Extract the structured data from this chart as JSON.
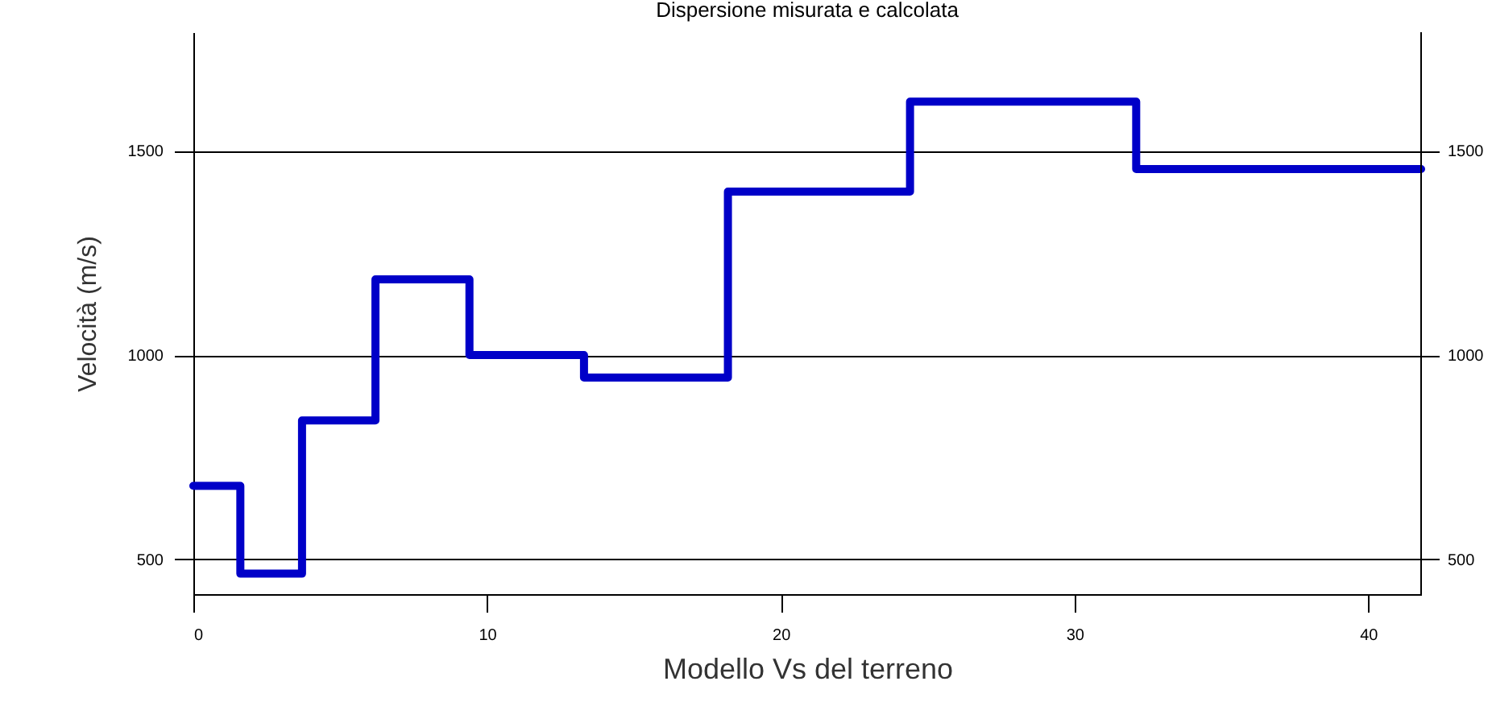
{
  "chart_data": {
    "type": "step",
    "title": "Dispersione misurata e calcolata",
    "xlabel": "Modello Vs del terreno",
    "ylabel": "Velocità (m/s)",
    "x": [
      0,
      1.6,
      3.7,
      6.2,
      9.4,
      13.3,
      18.2,
      24.4,
      32.1,
      41.8
    ],
    "series": [
      {
        "color": "#0000c8",
        "values": [
          680,
          465,
          840,
          1185,
          1000,
          945,
          1400,
          1620,
          1455,
          1455
        ]
      }
    ],
    "xlim": [
      0,
      41.8
    ],
    "xticks": [
      0,
      10,
      20,
      30,
      40
    ],
    "ylim": [
      415,
      1790
    ],
    "yticks": [
      500,
      1000,
      1500
    ],
    "y2lim": [
      415,
      1790
    ],
    "y2ticks": [
      500,
      1000,
      1500
    ],
    "grid": "y",
    "line_style": "solid"
  }
}
